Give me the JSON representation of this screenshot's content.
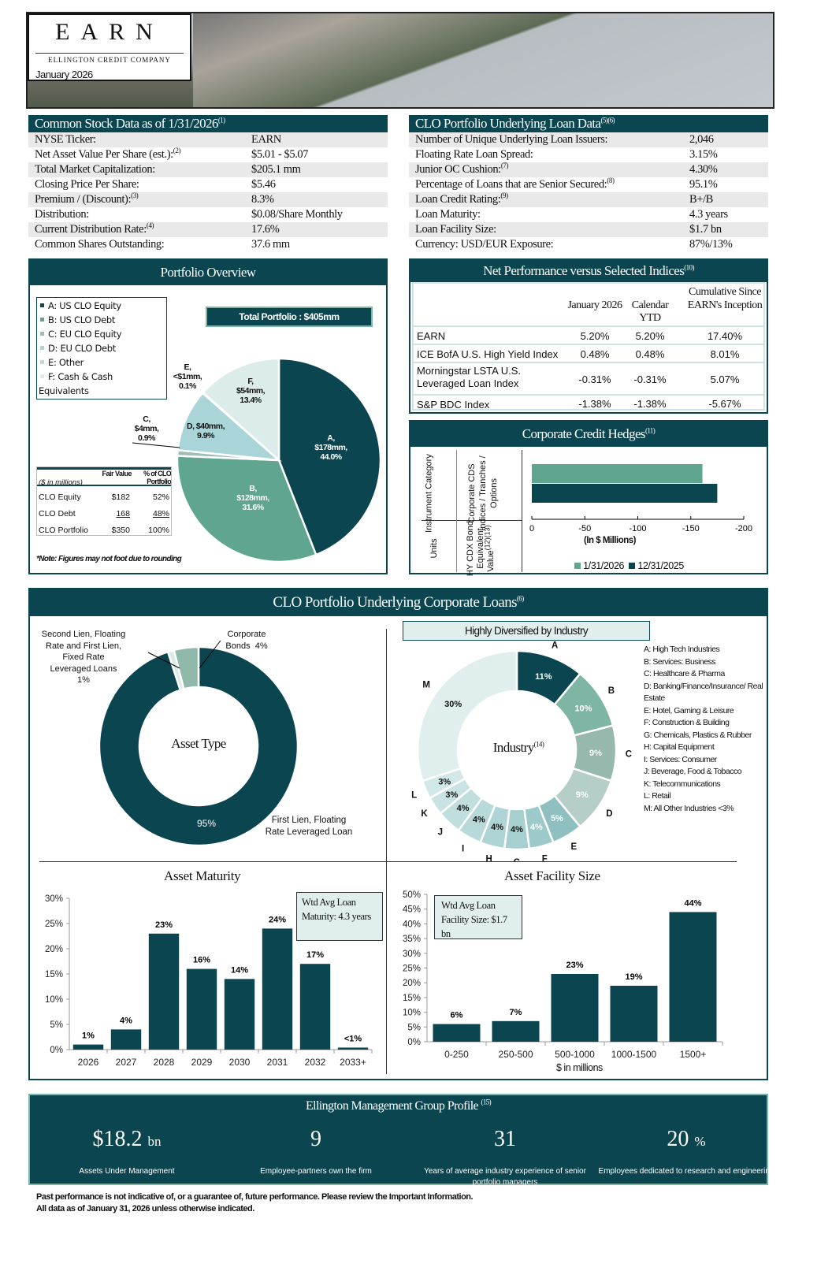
{
  "header": {
    "logo": "EARN",
    "company": "ELLINGTON CREDIT COMPANY",
    "date": "January 2026"
  },
  "stock": {
    "title": "Common Stock Data as of 1/31/2026",
    "title_sup": "(1)",
    "rows": [
      {
        "label": "NYSE Ticker:",
        "sup": "",
        "value": "EARN"
      },
      {
        "label": "Net Asset Value Per Share (est.):",
        "sup": "(2)",
        "value": "$5.01 - $5.07"
      },
      {
        "label": "Total Market Capitalization:",
        "sup": "",
        "value": "$205.1 mm"
      },
      {
        "label": "Closing Price Per Share:",
        "sup": "",
        "value": "$5.46"
      },
      {
        "label": "Premium / (Discount):",
        "sup": "(3)",
        "value": "8.3%"
      },
      {
        "label": "Distribution:",
        "sup": "",
        "value": "$0.08/Share Monthly"
      },
      {
        "label": "Current Distribution Rate:",
        "sup": "(4)",
        "value": "17.6%"
      },
      {
        "label": "Common Shares Outstanding:",
        "sup": "",
        "value": "37.6 mm"
      }
    ]
  },
  "loan_data": {
    "title": "CLO Portfolio Underlying Loan Data",
    "title_sup": "(5)(6)",
    "rows": [
      {
        "label": "Number of Unique Underlying Loan Issuers:",
        "sup": "",
        "value": "2,046"
      },
      {
        "label": "Floating Rate Loan Spread:",
        "sup": "",
        "value": "3.15%"
      },
      {
        "label": "Junior OC Cushion:",
        "sup": "(7)",
        "value": "4.30%"
      },
      {
        "label": "Percentage of Loans that are Senior Secured:",
        "sup": "(8)",
        "value": "95.1%"
      },
      {
        "label": "Loan Credit Rating:",
        "sup": "(9)",
        "value": "B+/B"
      },
      {
        "label": "Loan Maturity:",
        "sup": "",
        "value": "4.3 years"
      },
      {
        "label": "Loan Facility Size:",
        "sup": "",
        "value": "$1.7 bn"
      },
      {
        "label": "Currency: USD/EUR Exposure:",
        "sup": "",
        "value": "87%/13%"
      }
    ]
  },
  "portfolio": {
    "title": "Portfolio Overview",
    "total": "Total Portfolio : $405mm",
    "legend": [
      "A: US CLO Equity",
      "B: US CLO Debt",
      "C: EU CLO Equity",
      "D: EU CLO Debt",
      "E: Other",
      "F: Cash & Cash Equivalents"
    ],
    "slices": [
      {
        "key": "A",
        "amount": "$178mm",
        "pct": 44.0,
        "pct_label": "44.0%",
        "color": "#0b4650"
      },
      {
        "key": "B",
        "amount": "$128mm",
        "pct": 31.6,
        "pct_label": "31.6%",
        "color": "#5fa590"
      },
      {
        "key": "C",
        "amount": "$4mm",
        "pct": 0.9,
        "pct_label": "0.9%",
        "color": "#9dbfb3"
      },
      {
        "key": "D",
        "amount": "$40mm",
        "pct": 9.9,
        "pct_label": "9.9%",
        "color": "#a9d5d8"
      },
      {
        "key": "E",
        "amount": "<$1mm",
        "pct": 0.1,
        "pct_label": "0.1%",
        "color": "#b6dcdc"
      },
      {
        "key": "F",
        "amount": "$54mm",
        "pct": 13.4,
        "pct_label": "13.4%",
        "color": "#dcecea"
      }
    ],
    "table": {
      "units": "($ in millions)",
      "col1": "Fair Value",
      "col2": "% of CLO Portfolio",
      "rows": [
        {
          "label": "CLO Equity",
          "value": "$182",
          "pct": "52%"
        },
        {
          "label": "CLO Debt",
          "value": "168",
          "pct": "48%"
        },
        {
          "label": "CLO Portfolio",
          "value": "$350",
          "pct": "100%"
        }
      ]
    },
    "note": "*Note: Figures may not foot due to rounding"
  },
  "performance": {
    "title": "Net Performance versus Selected Indices",
    "title_sup": "(10)",
    "columns": [
      "January 2026",
      "Calendar YTD",
      "Cumulative Since EARN's Inception"
    ],
    "rows": [
      {
        "name": "EARN",
        "jan": "5.20%",
        "ytd": "5.20%",
        "cum": "17.40%"
      },
      {
        "name": "ICE BofA U.S. High Yield Index",
        "jan": "0.48%",
        "ytd": "0.48%",
        "cum": "8.01%"
      },
      {
        "name": "Morningstar LSTA U.S. Leveraged Loan Index",
        "jan": "-0.31%",
        "ytd": "-0.31%",
        "cum": "5.07%"
      },
      {
        "name": "S&P BDC Index",
        "jan": "-1.38%",
        "ytd": "-1.38%",
        "cum": "-5.67%"
      }
    ]
  },
  "hedges": {
    "title": "Corporate Credit Hedges",
    "title_sup": "(11)",
    "row_header1": "Instrument Category",
    "row_value1": "Corporate CDS Indices / Tranches / Options",
    "row_header2": "Units",
    "row_value2": "HY CDX Bond Equivalent Value",
    "row_value2_sup": "(12)(13)",
    "chart_data": {
      "type": "bar",
      "orientation": "horizontal",
      "xlabel": "(In $ Millions)",
      "xlim": [
        0,
        -200
      ],
      "ticks": [
        "0",
        "-50",
        "-100",
        "-150",
        "-200"
      ],
      "tick_values": [
        0,
        -50,
        -100,
        -150,
        -200
      ],
      "series": [
        {
          "name": "1/31/2026",
          "value": -161,
          "color": "#5fa590"
        },
        {
          "name": "12/31/2025",
          "value": -175,
          "color": "#0b4650"
        }
      ]
    }
  },
  "loans": {
    "title": "CLO Portfolio Underlying Corporate Loans",
    "title_sup": "(6)",
    "asset_type": {
      "center": "Asset Type",
      "slices": [
        {
          "name": "First Lien, Floating Rate Leveraged Loan",
          "pct": 95,
          "pct_label": "95%",
          "color": "#0b4650"
        },
        {
          "name": "Second Lien, Floating Rate and First Lien, Fixed Rate Leveraged Loans",
          "pct": 1,
          "pct_label": "1%",
          "color": "#d9ebe8"
        },
        {
          "name": "Corporate Bonds",
          "pct": 4,
          "pct_label": "4%",
          "color": "#8fb8ab"
        }
      ]
    },
    "industry": {
      "banner": "Highly Diversified by Industry",
      "center": "Industry",
      "center_sup": "(14)",
      "slices": [
        {
          "key": "A",
          "name": "High Tech Industries",
          "pct": 11,
          "color": "#0b4650"
        },
        {
          "key": "B",
          "name": "Services: Business",
          "pct": 10,
          "color": "#7fb5a5"
        },
        {
          "key": "C",
          "name": "Healthcare & Pharma",
          "pct": 9,
          "color": "#96b8ad"
        },
        {
          "key": "D",
          "name": "Banking/Finance/Insurance/ Real Estate",
          "pct": 9,
          "color": "#b5cfc8"
        },
        {
          "key": "E",
          "name": "Hotel, Gaming & Leisure",
          "pct": 5,
          "color": "#8fbfc0"
        },
        {
          "key": "F",
          "name": "Construction & Building",
          "pct": 4,
          "color": "#9cc9ca"
        },
        {
          "key": "G",
          "name": "Chemicals, Plastics & Rubber",
          "pct": 4,
          "color": "#a6cfd0"
        },
        {
          "key": "H",
          "name": "Capital Equipment",
          "pct": 4,
          "color": "#afd4d5"
        },
        {
          "key": "I",
          "name": "Services: Consumer",
          "pct": 4,
          "color": "#b8d9da"
        },
        {
          "key": "J",
          "name": "Beverage, Food & Tobacco",
          "pct": 4,
          "color": "#c1dedf"
        },
        {
          "key": "K",
          "name": "Telecommunications",
          "pct": 3,
          "color": "#c9e2e3"
        },
        {
          "key": "L",
          "name": "Retail",
          "pct": 3,
          "color": "#d2e7e7"
        },
        {
          "key": "M",
          "name": "All Other Industries <3%",
          "pct": 30,
          "color": "#e0eeee"
        }
      ]
    },
    "maturity": {
      "title": "Asset Maturity",
      "callout": "Wtd Avg Loan Maturity: 4.3 years",
      "chart_data": {
        "type": "bar",
        "categories": [
          "2026",
          "2027",
          "2028",
          "2029",
          "2030",
          "2031",
          "2032",
          "2033+"
        ],
        "values": [
          1,
          4,
          23,
          16,
          14,
          24,
          17,
          0.4
        ],
        "labels": [
          "1%",
          "4%",
          "23%",
          "16%",
          "14%",
          "24%",
          "17%",
          "<1%"
        ],
        "ylim": [
          0,
          30
        ],
        "yticks": [
          "0%",
          "5%",
          "10%",
          "15%",
          "20%",
          "25%",
          "30%"
        ],
        "ytick_values": [
          0,
          5,
          10,
          15,
          20,
          25,
          30
        ]
      }
    },
    "facility": {
      "title": "Asset Facility Size",
      "callout": "Wtd Avg Loan Facility Size: $1.7 bn",
      "chart_data": {
        "type": "bar",
        "categories": [
          "0-250",
          "250-500",
          "500-1000",
          "1000-1500",
          "1500+"
        ],
        "values": [
          6,
          7,
          23,
          19,
          44
        ],
        "labels": [
          "6%",
          "7%",
          "23%",
          "19%",
          "44%"
        ],
        "xlabel": "$ in millions",
        "ylim": [
          0,
          50
        ],
        "yticks": [
          "0%",
          "5%",
          "10%",
          "15%",
          "20%",
          "25%",
          "30%",
          "35%",
          "40%",
          "45%",
          "50%"
        ],
        "ytick_values": [
          0,
          5,
          10,
          15,
          20,
          25,
          30,
          35,
          40,
          45,
          50
        ]
      }
    }
  },
  "profile": {
    "title": "Ellington Management Group Profile",
    "title_sup": "(15)",
    "stats": [
      {
        "value": "$18.2",
        "unit": "bn",
        "desc": "Assets Under Management"
      },
      {
        "value": "9",
        "unit": "",
        "desc": "Employee-partners own the firm"
      },
      {
        "value": "31",
        "unit": "",
        "desc": "Years of average industry experience of senior portfolio managers"
      },
      {
        "value": "20",
        "unit": "%",
        "desc": "Employees dedicated to research and engineering"
      }
    ]
  },
  "footer": {
    "line1": "Past performance is not indicative of, or a guarantee of, future performance. Please review the Important Information.",
    "line2": "All data as of January 31, 2026 unless otherwise indicated."
  }
}
